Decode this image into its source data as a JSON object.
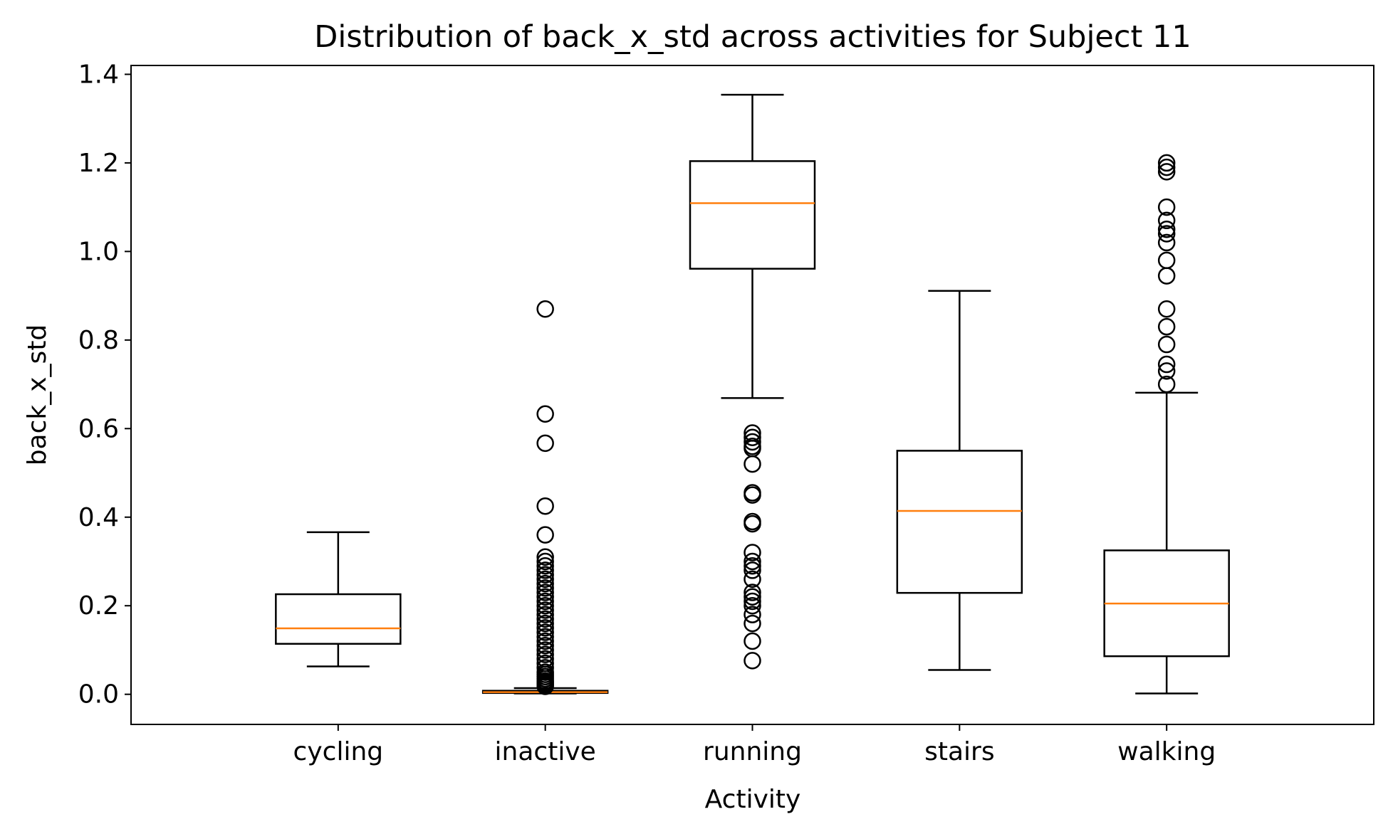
{
  "chart_data": {
    "type": "box",
    "title": "Distribution of back_x_std across activities for Subject 11",
    "xlabel": "Activity",
    "ylabel": "back_x_std",
    "ylim": [
      -0.068,
      1.42
    ],
    "yticks": [
      0.0,
      0.2,
      0.4,
      0.6,
      0.8,
      1.0,
      1.2,
      1.4
    ],
    "ytick_labels": [
      "0.0",
      "0.2",
      "0.4",
      "0.6",
      "0.8",
      "1.0",
      "1.2",
      "1.4"
    ],
    "grid": false,
    "colors": {
      "box": "#000000",
      "median": "#ff7f0e",
      "outlier": "#000000"
    },
    "categories": [
      "cycling",
      "inactive",
      "running",
      "stairs",
      "walking"
    ],
    "boxes": [
      {
        "category": "cycling",
        "whisker_low": 0.063,
        "q1": 0.114,
        "median": 0.149,
        "q3": 0.226,
        "whisker_high": 0.366,
        "outliers": []
      },
      {
        "category": "inactive",
        "whisker_low": 0.002,
        "q1": 0.003,
        "median": 0.005,
        "q3": 0.008,
        "whisker_high": 0.014,
        "outliers": [
          0.87,
          0.633,
          0.567,
          0.425,
          0.36,
          0.31,
          0.3,
          0.29,
          0.28,
          0.27,
          0.26,
          0.25,
          0.24,
          0.23,
          0.22,
          0.21,
          0.2,
          0.19,
          0.18,
          0.17,
          0.16,
          0.15,
          0.14,
          0.13,
          0.12,
          0.11,
          0.1,
          0.09,
          0.08,
          0.07,
          0.06,
          0.05,
          0.045,
          0.04,
          0.035,
          0.03,
          0.027,
          0.024,
          0.021,
          0.018
        ]
      },
      {
        "category": "running",
        "whisker_low": 0.669,
        "q1": 0.961,
        "median": 1.109,
        "q3": 1.204,
        "whisker_high": 1.354,
        "outliers": [
          0.59,
          0.58,
          0.57,
          0.56,
          0.555,
          0.52,
          0.455,
          0.45,
          0.39,
          0.385,
          0.32,
          0.3,
          0.29,
          0.28,
          0.26,
          0.23,
          0.22,
          0.21,
          0.2,
          0.18,
          0.16,
          0.12,
          0.076
        ]
      },
      {
        "category": "stairs",
        "whisker_low": 0.055,
        "q1": 0.229,
        "median": 0.414,
        "q3": 0.55,
        "whisker_high": 0.911,
        "outliers": []
      },
      {
        "category": "walking",
        "whisker_low": 0.002,
        "q1": 0.086,
        "median": 0.205,
        "q3": 0.325,
        "whisker_high": 0.681,
        "outliers": [
          1.2,
          1.19,
          1.18,
          1.1,
          1.07,
          1.05,
          1.04,
          1.02,
          0.98,
          0.945,
          0.87,
          0.83,
          0.79,
          0.745,
          0.73,
          0.7
        ]
      }
    ]
  }
}
